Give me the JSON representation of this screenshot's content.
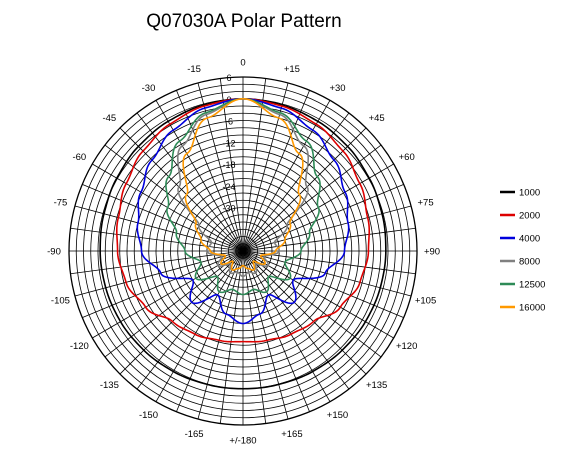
{
  "chart_data": {
    "type": "line",
    "subtype": "polar",
    "title": "Q07030A Polar Pattern",
    "angle_labels": [
      "0",
      "+15",
      "+30",
      "+45",
      "+60",
      "+75",
      "+90",
      "+105",
      "+120",
      "+135",
      "+150",
      "+165",
      "+/-180",
      "-165",
      "-150",
      "-135",
      "-120",
      "-105",
      "-90",
      "-75",
      "-60",
      "-45",
      "-30",
      "-15"
    ],
    "radial_labels": [
      "6",
      "0",
      "-6",
      "-12",
      "-18",
      "-24",
      "-30"
    ],
    "radial_range_db": [
      -42,
      6
    ],
    "grid": true,
    "legend_position": "right",
    "angles_deg": [
      0,
      15,
      30,
      45,
      60,
      75,
      90,
      105,
      120,
      135,
      150,
      165,
      180
    ],
    "series": [
      {
        "name": "1000",
        "color": "#000000",
        "values_db": [
          0,
          -0.3,
          -0.7,
          -1.2,
          -1.8,
          -2.3,
          -2.6,
          -2.8,
          -3.0,
          -3.3,
          -3.6,
          -3.9,
          -4.0
        ]
      },
      {
        "name": "2000",
        "color": "#dd0000",
        "values_db": [
          0,
          -0.6,
          -1.6,
          -3.0,
          -4.8,
          -6.4,
          -7.4,
          -8.6,
          -11.0,
          -14.5,
          -15.5,
          -16.5,
          -17.0
        ]
      },
      {
        "name": "4000",
        "color": "#0000dd",
        "values_db": [
          0,
          -1.2,
          -3.5,
          -6.5,
          -9.5,
          -12.0,
          -14.0,
          -18.5,
          -26.0,
          -22.0,
          -28.0,
          -24.0,
          -22.0
        ]
      },
      {
        "name": "8000",
        "color": "#808080",
        "values_db": [
          0,
          -3.0,
          -8.5,
          -17.0,
          -28.0,
          -33.0,
          -32.0,
          -36.0,
          -34.0,
          -37.0,
          -35.0,
          -36.0,
          -35.0
        ]
      },
      {
        "name": "12500",
        "color": "#2e8b57",
        "values_db": [
          0,
          -2.5,
          -7.0,
          -13.0,
          -18.0,
          -23.0,
          -26.0,
          -30.0,
          -27.0,
          -32.0,
          -29.0,
          -31.0,
          -30.0
        ]
      },
      {
        "name": "16000",
        "color": "#ff9900",
        "values_db": [
          0,
          -4.0,
          -11.0,
          -20.0,
          -27.0,
          -30.0,
          -33.0,
          -37.0,
          -35.0,
          -38.0,
          -36.0,
          -37.0,
          -38.0
        ]
      }
    ]
  }
}
